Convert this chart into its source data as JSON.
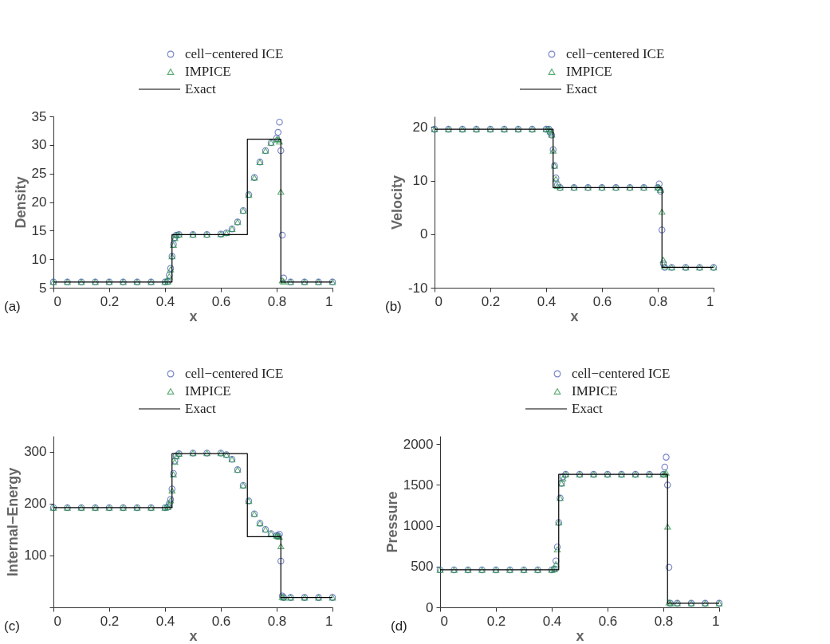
{
  "chart_data": [
    {
      "type": "scatter",
      "xlabel": "x",
      "ylabel": "Density",
      "annotations": [
        "(a)"
      ],
      "xlim": [
        0,
        1
      ],
      "xticks": [
        0,
        0.2,
        0.4,
        0.6,
        0.8,
        1
      ],
      "ylim": [
        5,
        35
      ],
      "yticks": [
        5,
        10,
        15,
        20,
        25,
        30,
        35
      ],
      "legend": "top right",
      "grid": false,
      "x": [
        0,
        0.05,
        0.1,
        0.15,
        0.2,
        0.25,
        0.3,
        0.35,
        0.4,
        0.41,
        0.415,
        0.42,
        0.425,
        0.43,
        0.435,
        0.44,
        0.45,
        0.5,
        0.55,
        0.6,
        0.62,
        0.64,
        0.66,
        0.68,
        0.7,
        0.72,
        0.74,
        0.76,
        0.78,
        0.8,
        0.805,
        0.81,
        0.815,
        0.82,
        0.825,
        0.85,
        0.9,
        0.95,
        1.0
      ],
      "series": [
        {
          "name": "cell−centered ICE",
          "marker": "circle",
          "color": "#3b4fb0",
          "values": [
            6,
            6,
            6,
            6,
            6,
            6,
            6,
            6,
            6,
            6.1,
            7.2,
            8.4,
            10.5,
            12.6,
            13.8,
            14.2,
            14.3,
            14.3,
            14.3,
            14.4,
            14.6,
            15.3,
            16.5,
            18.5,
            21.3,
            24.3,
            27,
            29,
            30.4,
            31.2,
            32.2,
            34,
            29,
            14.2,
            6.7,
            6,
            6,
            6,
            6
          ]
        },
        {
          "name": "IMPICE",
          "marker": "triangle",
          "color": "#1b8a3c",
          "values": [
            6,
            6,
            6,
            6,
            6,
            6,
            6,
            6,
            6,
            6.1,
            7,
            8.2,
            10.5,
            12.5,
            13.7,
            14.2,
            14.3,
            14.3,
            14.3,
            14.4,
            14.6,
            15.3,
            16.5,
            18.5,
            21.3,
            24.3,
            27,
            29,
            30.4,
            31,
            31,
            30.6,
            21.8,
            6.3,
            6.1,
            6,
            6,
            6,
            6
          ]
        },
        {
          "name": "Exact",
          "type": "line",
          "color": "#000000",
          "x": [
            0,
            0.425,
            0.425,
            0.695,
            0.695,
            0.815,
            0.815,
            1
          ],
          "values": [
            6,
            6,
            14.3,
            14.3,
            31,
            31,
            6,
            6
          ]
        }
      ]
    },
    {
      "type": "scatter",
      "xlabel": "x",
      "ylabel": "Velocity",
      "annotations": [
        "(b)"
      ],
      "xlim": [
        0,
        1
      ],
      "xticks": [
        0,
        0.2,
        0.4,
        0.6,
        0.8,
        1
      ],
      "ylim": [
        -10,
        22
      ],
      "yticks": [
        -10,
        0,
        10,
        20
      ],
      "legend": "top right",
      "grid": false,
      "x": [
        0,
        0.05,
        0.1,
        0.15,
        0.2,
        0.25,
        0.3,
        0.35,
        0.4,
        0.41,
        0.415,
        0.42,
        0.425,
        0.43,
        0.435,
        0.44,
        0.45,
        0.5,
        0.55,
        0.6,
        0.65,
        0.7,
        0.75,
        0.8,
        0.805,
        0.81,
        0.815,
        0.82,
        0.825,
        0.85,
        0.9,
        0.95,
        1.0
      ],
      "series": [
        {
          "name": "cell−centered ICE",
          "marker": "circle",
          "color": "#3b4fb0",
          "values": [
            19.6,
            19.6,
            19.6,
            19.6,
            19.6,
            19.6,
            19.6,
            19.6,
            19.6,
            19.6,
            19,
            18.5,
            15.8,
            12.8,
            10.5,
            9.2,
            8.7,
            8.7,
            8.7,
            8.7,
            8.7,
            8.7,
            8.7,
            8.7,
            9.4,
            8,
            0.8,
            -5.5,
            -6.2,
            -6.2,
            -6.2,
            -6.2,
            -6.2
          ]
        },
        {
          "name": "IMPICE",
          "marker": "triangle",
          "color": "#1b8a3c",
          "values": [
            19.6,
            19.6,
            19.6,
            19.6,
            19.6,
            19.6,
            19.6,
            19.6,
            19.6,
            19.6,
            19.2,
            18.6,
            15.6,
            12.8,
            10.3,
            9,
            8.7,
            8.7,
            8.7,
            8.7,
            8.7,
            8.7,
            8.7,
            8.7,
            8.7,
            8.3,
            4.2,
            -4.8,
            -6,
            -6.2,
            -6.2,
            -6.2,
            -6.2
          ]
        },
        {
          "name": "Exact",
          "type": "line",
          "color": "#000000",
          "x": [
            0,
            0.425,
            0.425,
            0.815,
            0.815,
            1
          ],
          "values": [
            19.6,
            19.6,
            8.7,
            8.7,
            -6.2,
            -6.2
          ]
        }
      ]
    },
    {
      "type": "scatter",
      "xlabel": "x",
      "ylabel": "Internal−Energy",
      "annotations": [
        "(c)"
      ],
      "xlim": [
        0,
        1
      ],
      "xticks": [
        0,
        0.2,
        0.4,
        0.6,
        0.8,
        1
      ],
      "ylim": [
        0,
        330
      ],
      "yticks": [
        {
          "value": 0,
          "label": null
        },
        100,
        200,
        300
      ],
      "legend": "top right",
      "grid": false,
      "x": [
        0,
        0.05,
        0.1,
        0.15,
        0.2,
        0.25,
        0.3,
        0.35,
        0.4,
        0.41,
        0.415,
        0.42,
        0.425,
        0.43,
        0.435,
        0.44,
        0.45,
        0.5,
        0.55,
        0.6,
        0.62,
        0.64,
        0.66,
        0.68,
        0.7,
        0.72,
        0.74,
        0.76,
        0.78,
        0.8,
        0.805,
        0.81,
        0.815,
        0.82,
        0.825,
        0.85,
        0.9,
        0.95,
        1.0
      ],
      "series": [
        {
          "name": "cell−centered ICE",
          "marker": "circle",
          "color": "#3b4fb0",
          "values": [
            192,
            192,
            192,
            192,
            192,
            192,
            192,
            192,
            192,
            193,
            200,
            208,
            228,
            258,
            282,
            292,
            296,
            297,
            297,
            297,
            294,
            285,
            265,
            235,
            205,
            180,
            162,
            150,
            142,
            138,
            138,
            141,
            89,
            22,
            19,
            19,
            19,
            19,
            19
          ]
        },
        {
          "name": "IMPICE",
          "marker": "triangle",
          "color": "#1b8a3c",
          "values": [
            192,
            192,
            192,
            192,
            192,
            192,
            192,
            192,
            192,
            193,
            198,
            206,
            225,
            256,
            280,
            291,
            296,
            297,
            297,
            297,
            294,
            285,
            265,
            235,
            205,
            180,
            162,
            150,
            142,
            138,
            137,
            136,
            118,
            20,
            19,
            19,
            19,
            19,
            19
          ]
        },
        {
          "name": "Exact",
          "type": "line",
          "color": "#000000",
          "x": [
            0,
            0.425,
            0.425,
            0.695,
            0.695,
            0.815,
            0.815,
            1
          ],
          "values": [
            192,
            192,
            296,
            296,
            136,
            136,
            19,
            19
          ]
        }
      ]
    },
    {
      "type": "scatter",
      "xlabel": "x",
      "ylabel": "Pressure",
      "annotations": [
        "(d)"
      ],
      "xlim": [
        0,
        1
      ],
      "xticks": [
        0,
        0.2,
        0.4,
        0.6,
        0.8,
        1
      ],
      "ylim": [
        0,
        2100
      ],
      "yticks": [
        0,
        500,
        1000,
        1500,
        2000
      ],
      "legend": "top right",
      "grid": false,
      "x": [
        0,
        0.05,
        0.1,
        0.15,
        0.2,
        0.25,
        0.3,
        0.35,
        0.4,
        0.41,
        0.415,
        0.42,
        0.425,
        0.43,
        0.435,
        0.44,
        0.45,
        0.5,
        0.55,
        0.6,
        0.65,
        0.7,
        0.75,
        0.8,
        0.805,
        0.81,
        0.815,
        0.82,
        0.825,
        0.85,
        0.9,
        0.95,
        1.0
      ],
      "series": [
        {
          "name": "cell−centered ICE",
          "marker": "circle",
          "color": "#3b4fb0",
          "values": [
            460,
            460,
            460,
            460,
            460,
            460,
            460,
            460,
            460,
            470,
            570,
            740,
            1040,
            1340,
            1520,
            1600,
            1630,
            1630,
            1630,
            1630,
            1630,
            1630,
            1630,
            1630,
            1720,
            1840,
            1500,
            490,
            50,
            50,
            50,
            50,
            50
          ]
        },
        {
          "name": "IMPICE",
          "marker": "triangle",
          "color": "#1b8a3c",
          "values": [
            460,
            460,
            460,
            460,
            460,
            460,
            460,
            460,
            460,
            470,
            530,
            710,
            1040,
            1340,
            1520,
            1580,
            1630,
            1630,
            1630,
            1630,
            1630,
            1630,
            1630,
            1630,
            1630,
            1650,
            990,
            60,
            50,
            50,
            50,
            50,
            50
          ]
        },
        {
          "name": "Exact",
          "type": "line",
          "color": "#000000",
          "x": [
            0,
            0.425,
            0.425,
            0.815,
            0.815,
            1
          ],
          "values": [
            460,
            460,
            1630,
            1630,
            50,
            50
          ]
        }
      ]
    }
  ]
}
